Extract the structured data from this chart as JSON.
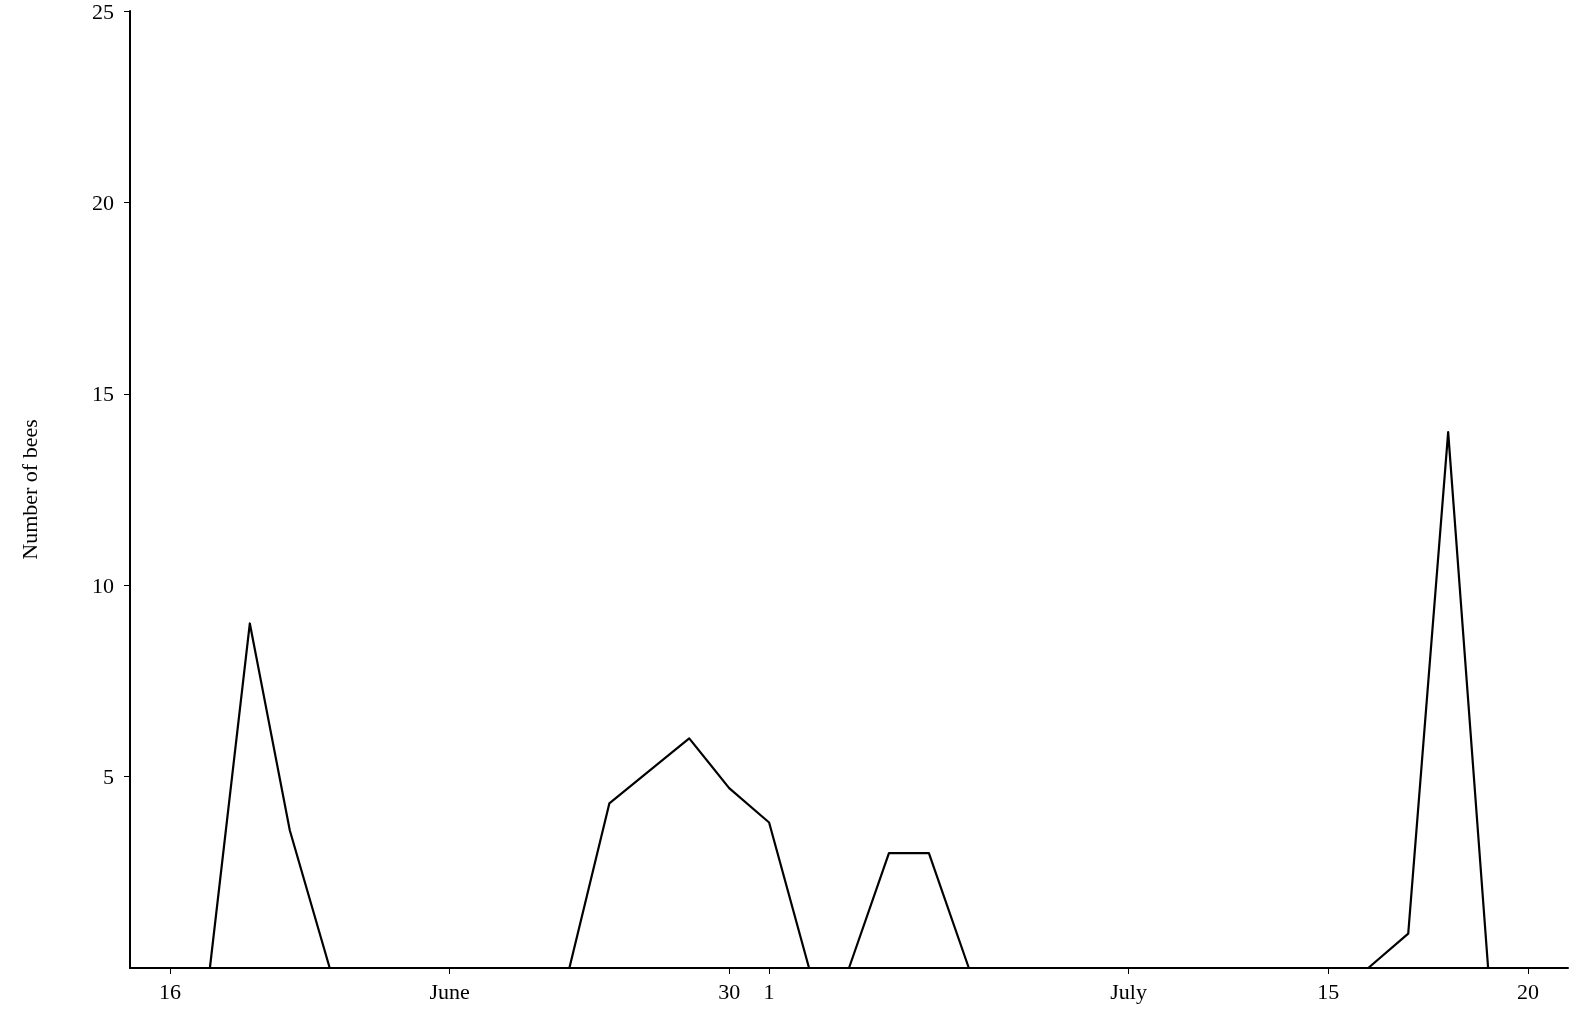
{
  "chart_data": {
    "type": "line",
    "ylabel": "Number of bees",
    "x": [
      "--06-17",
      "--06-18",
      "--06-19",
      "--06-20",
      "--06-26",
      "--06-27",
      "--06-29",
      "--06-30",
      "--07-01",
      "--07-02",
      "--07-03",
      "--07-04",
      "--07-05",
      "--07-06",
      "--07-16",
      "--07-17",
      "--07-18",
      "--07-19"
    ],
    "series": [
      {
        "color": "#000000",
        "values": [
          0,
          9,
          3.6,
          0,
          0,
          4.3,
          6,
          4.7,
          3.8,
          0,
          0,
          3,
          3,
          0,
          0,
          0.9,
          14,
          0
        ]
      }
    ],
    "xlim": [
      "--06-15",
      "--07-21"
    ],
    "xticks": [
      {
        "value": "--06-16",
        "label": "16"
      },
      {
        "value": "--06-23",
        "label": "June"
      },
      {
        "value": "--06-30",
        "label": "30"
      },
      {
        "value": "--07-01",
        "label": "1"
      },
      {
        "value": "--07-10",
        "label": "July"
      },
      {
        "value": "--07-15",
        "label": "15"
      },
      {
        "value": "--07-20",
        "label": "20"
      }
    ],
    "ylim": [
      0,
      25
    ],
    "yticks": [
      5,
      10,
      15,
      20,
      25
    ],
    "grid": false,
    "marker": "none",
    "line_style": "solid"
  }
}
